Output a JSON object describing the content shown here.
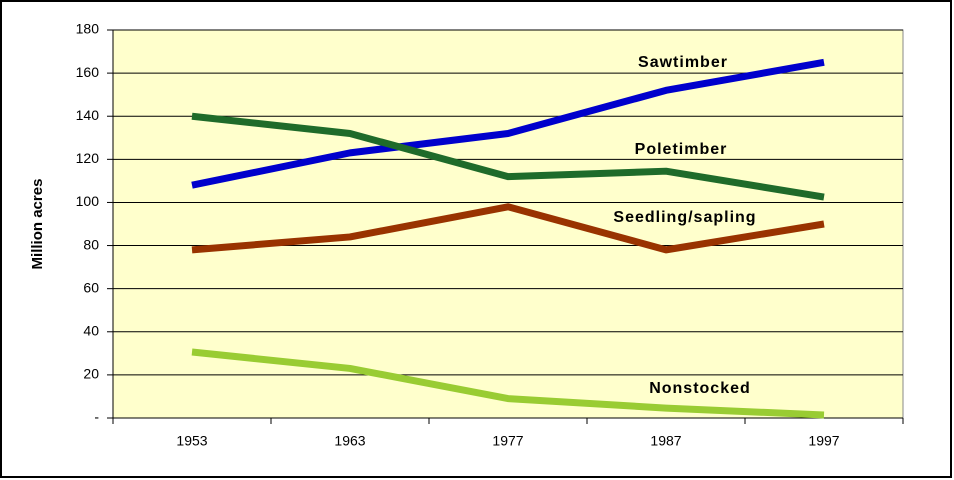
{
  "chart_data": {
    "type": "line",
    "y_label": "Million acres",
    "categories": [
      "1953",
      "1963",
      "1977",
      "1987",
      "1997"
    ],
    "series": [
      {
        "name": "Sawtimber",
        "color": "#0000cc",
        "values": [
          108,
          123,
          132,
          152,
          165
        ]
      },
      {
        "name": "Poletimber",
        "color": "#1f6b2a",
        "values": [
          140,
          132,
          112,
          114.5,
          102.5
        ]
      },
      {
        "name": "Seedling/sapling",
        "color": "#993300",
        "values": [
          78,
          84,
          98,
          78,
          90
        ]
      },
      {
        "name": "Nonstocked",
        "color": "#99cc33",
        "values": [
          30.6,
          23,
          9,
          4.6,
          1.4
        ]
      }
    ],
    "ylim": [
      0,
      180
    ],
    "yticks": [
      {
        "value": 0,
        "label": "-"
      },
      20,
      40,
      60,
      80,
      100,
      120,
      140,
      160,
      180
    ],
    "grid": true
  }
}
